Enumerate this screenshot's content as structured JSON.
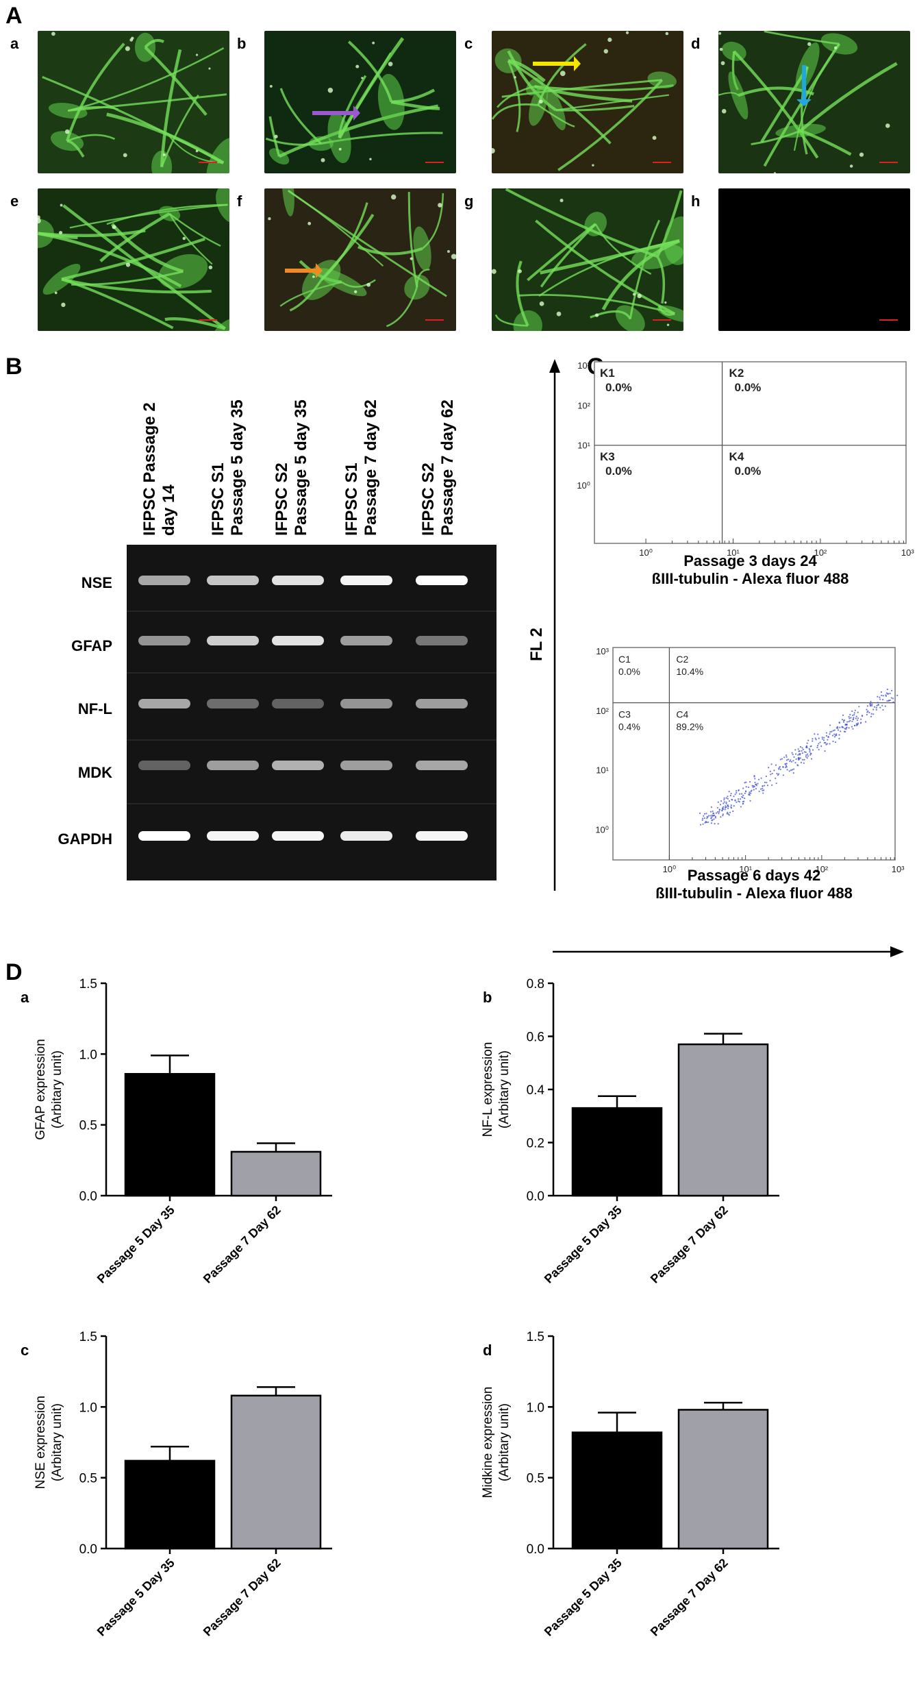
{
  "panel_A": {
    "letter": "A",
    "images": [
      {
        "label": "a"
      },
      {
        "label": "b",
        "arrow_color": "#9b59d0"
      },
      {
        "label": "c",
        "arrow_color": "#f5e400"
      },
      {
        "label": "d",
        "arrow_color": "#1fa8e0"
      },
      {
        "label": "e"
      },
      {
        "label": "f",
        "arrow_color": "#f08a24"
      },
      {
        "label": "g"
      },
      {
        "label": "h"
      }
    ]
  },
  "panel_B": {
    "letter": "B",
    "lanes": [
      "IFPSC Passage 2\nday 14",
      "IFPSC S1\nPassage 5 day 35",
      "IFPSC S2\nPassage 5 day 35",
      "IFPSC S1\nPassage 7 day 62",
      "IFPSC S2\nPassage 7 day 62"
    ],
    "genes": [
      "NSE",
      "GFAP",
      "NF-L",
      "MDK",
      "GAPDH"
    ],
    "band_intensity": [
      [
        0.55,
        0.7,
        0.85,
        0.95,
        1.0
      ],
      [
        0.45,
        0.75,
        0.85,
        0.5,
        0.3
      ],
      [
        0.55,
        0.25,
        0.2,
        0.45,
        0.5
      ],
      [
        0.2,
        0.5,
        0.6,
        0.5,
        0.55
      ],
      [
        1.0,
        0.95,
        0.95,
        0.9,
        0.95
      ]
    ]
  },
  "panel_C": {
    "letter": "C",
    "y_axis_label": "FL 2",
    "plots": [
      {
        "caption_line1": "Passage 3 days 24",
        "caption_line2": "ßIII-tubulin - Alexa fluor 488",
        "quadrants": [
          {
            "name": "K1",
            "value": "0.0%"
          },
          {
            "name": "K2",
            "value": "0.0%"
          },
          {
            "name": "K3",
            "value": "0.0%"
          },
          {
            "name": "K4",
            "value": "0.0%"
          }
        ],
        "y_ticks": [
          "10³",
          "10²",
          "10¹",
          "10⁰"
        ],
        "x_ticks": [
          "10⁰",
          "10¹",
          "10²",
          "10³"
        ]
      },
      {
        "caption_line1": "Passage 6 days 42",
        "caption_line2": "ßIII-tubulin - Alexa fluor 488",
        "quadrants": [
          {
            "name": "C1",
            "value": "0.0%"
          },
          {
            "name": "C2",
            "value": "10.4%"
          },
          {
            "name": "C3",
            "value": "0.4%"
          },
          {
            "name": "C4",
            "value": "89.2%"
          }
        ],
        "y_ticks": [
          "10³",
          "10²",
          "10¹",
          "10⁰"
        ],
        "x_ticks": [
          "10⁰",
          "10¹",
          "10²",
          "10³"
        ]
      }
    ]
  },
  "panel_D": {
    "letter": "D"
  },
  "chart_data": [
    {
      "type": "bar",
      "label": "a",
      "categories": [
        "Passage 5 Day 35",
        "Passage 7 Day 62"
      ],
      "values": [
        0.86,
        0.31
      ],
      "errors": [
        0.13,
        0.06
      ],
      "ylabel": "GFAP expression\n(Arbitary unit)",
      "ylim": [
        0,
        1.5
      ],
      "yticks": [
        0.0,
        0.5,
        1.0,
        1.5
      ],
      "tick_format": 1,
      "colors": [
        "#000000",
        "#a0a0a8"
      ]
    },
    {
      "type": "bar",
      "label": "b",
      "categories": [
        "Passage 5 Day 35",
        "Passage 7 Day 62"
      ],
      "values": [
        0.33,
        0.57
      ],
      "errors": [
        0.045,
        0.04
      ],
      "ylabel": "NF-L expression\n(Arbitary unit)",
      "ylim": [
        0,
        0.8
      ],
      "yticks": [
        0.0,
        0.2,
        0.4,
        0.6,
        0.8
      ],
      "tick_format": 1,
      "colors": [
        "#000000",
        "#a0a0a8"
      ]
    },
    {
      "type": "bar",
      "label": "c",
      "categories": [
        "Passage 5 Day 35",
        "Passage 7 Day 62"
      ],
      "values": [
        0.62,
        1.08
      ],
      "errors": [
        0.1,
        0.06
      ],
      "ylabel": "NSE expression\n(Arbitary unit)",
      "ylim": [
        0,
        1.5
      ],
      "yticks": [
        0.0,
        0.5,
        1.0,
        1.5
      ],
      "tick_format": 1,
      "colors": [
        "#000000",
        "#a0a0a8"
      ]
    },
    {
      "type": "bar",
      "label": "d",
      "categories": [
        "Passage 5 Day 35",
        "Passage 7 Day 62"
      ],
      "values": [
        0.82,
        0.98
      ],
      "errors": [
        0.14,
        0.05
      ],
      "ylabel": "Midkine expression\n(Arbitary unit)",
      "ylim": [
        0,
        1.5
      ],
      "yticks": [
        0.0,
        0.5,
        1.0,
        1.5
      ],
      "tick_format": 1,
      "colors": [
        "#000000",
        "#a0a0a8"
      ]
    }
  ]
}
